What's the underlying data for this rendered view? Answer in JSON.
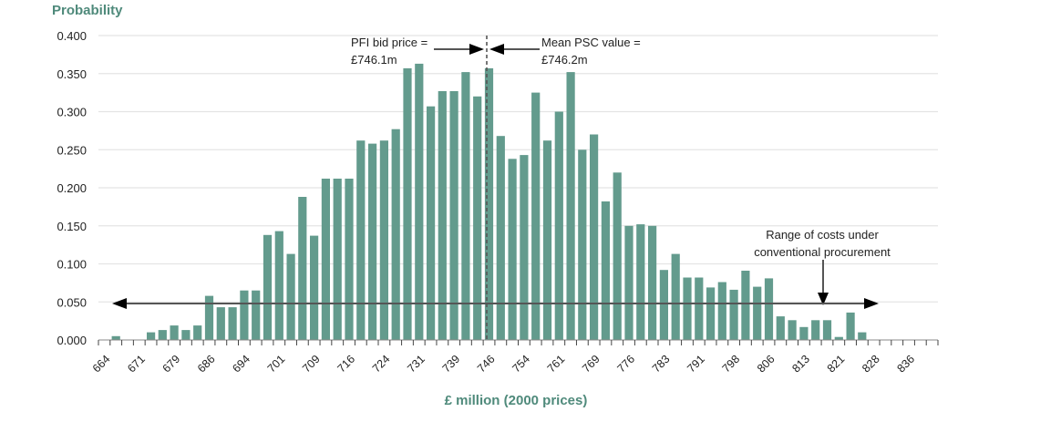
{
  "chart_data": {
    "type": "bar",
    "title": "",
    "ylabel": "Probability",
    "xlabel": "£ million (2000 prices)",
    "ylim": [
      0,
      0.4
    ],
    "yticks": [
      "0.000",
      "0.050",
      "0.100",
      "0.150",
      "0.200",
      "0.250",
      "0.300",
      "0.350",
      "0.400"
    ],
    "ytick_values": [
      0,
      0.05,
      0.1,
      0.15,
      0.2,
      0.25,
      0.3,
      0.35,
      0.4
    ],
    "grid": true,
    "xtick_labels": [
      "664",
      "671",
      "679",
      "686",
      "694",
      "701",
      "709",
      "716",
      "724",
      "731",
      "739",
      "746",
      "754",
      "761",
      "769",
      "776",
      "783",
      "791",
      "798",
      "806",
      "813",
      "821",
      "828",
      "836"
    ],
    "xtick_every": 3,
    "values": [
      0,
      0.005,
      0,
      0,
      0.01,
      0.013,
      0.019,
      0.013,
      0.019,
      0.058,
      0.043,
      0.043,
      0.065,
      0.065,
      0.138,
      0.143,
      0.113,
      0.188,
      0.137,
      0.212,
      0.212,
      0.212,
      0.262,
      0.258,
      0.262,
      0.277,
      0.357,
      0.363,
      0.307,
      0.327,
      0.327,
      0.352,
      0.32,
      0.357,
      0.268,
      0.238,
      0.243,
      0.325,
      0.262,
      0.3,
      0.352,
      0.25,
      0.27,
      0.182,
      0.22,
      0.15,
      0.152,
      0.15,
      0.092,
      0.113,
      0.082,
      0.082,
      0.069,
      0.076,
      0.066,
      0.091,
      0.07,
      0.081,
      0.031,
      0.026,
      0.017,
      0.026,
      0.026,
      0.004,
      0.036,
      0.01,
      0,
      0,
      0,
      0,
      0,
      0
    ],
    "series_color": "#639b8d",
    "title_color": "#4f8a7b",
    "annotations": {
      "pfi": {
        "line1": "PFI bid price =",
        "line2": "£746.1m",
        "value": 746.1
      },
      "psc": {
        "line1": "Mean PSC value =",
        "line2": "£746.2m",
        "value": 746.2
      },
      "range": {
        "line1": "Range of costs under",
        "line2": "conventional procurement",
        "y_value": 0.046
      }
    },
    "legend": "none"
  }
}
